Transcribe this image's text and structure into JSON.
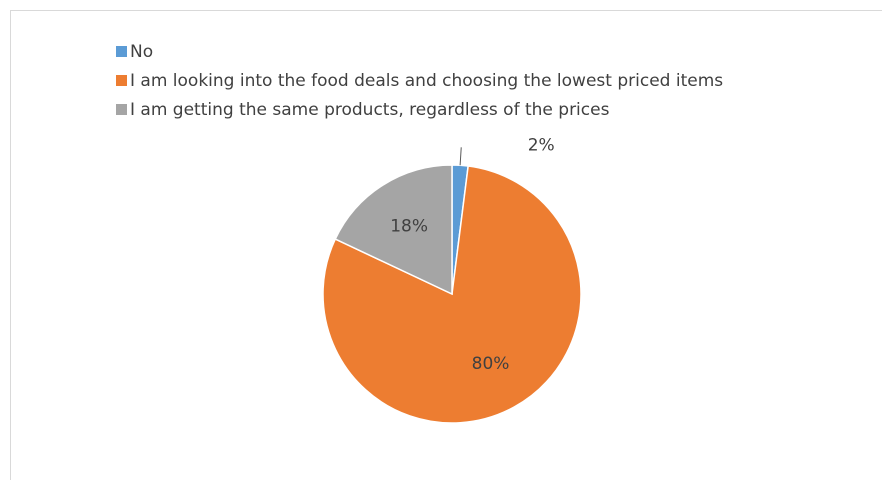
{
  "chart_data": {
    "type": "pie",
    "title": "",
    "legend_position": "top-left",
    "slices": [
      {
        "label": "No",
        "value": 2,
        "display": "2%",
        "color": "#5B9BD5"
      },
      {
        "label": "I am looking into the food deals and choosing the lowest priced items",
        "value": 80,
        "display": "80%",
        "color": "#ED7D31"
      },
      {
        "label": "I am getting the same products, regardless of the prices",
        "value": 18,
        "display": "18%",
        "color": "#A5A5A5"
      }
    ]
  }
}
